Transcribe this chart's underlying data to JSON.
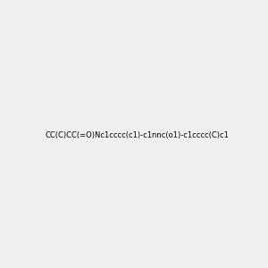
{
  "smiles": "CC(C)CC(=O)Nc1cccc(c1)-c1nnc(o1)-c1cccc(C)c1",
  "title": "",
  "img_size": [
    300,
    300
  ],
  "background_color": "#f0f0f0",
  "bond_color": "#000000",
  "atom_colors": {
    "N": "#0000ff",
    "O": "#ff0000",
    "H": "#888888"
  }
}
